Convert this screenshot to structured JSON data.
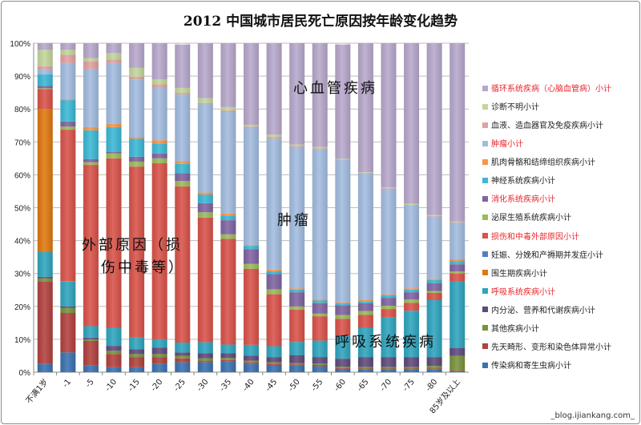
{
  "chart_data": {
    "type": "bar",
    "stacked": "percent",
    "title": "2012 中国城市居民死亡原因按年龄变化趋势",
    "xlabel": "",
    "ylabel": "",
    "ylim": [
      0,
      100
    ],
    "yticks": [
      "0%",
      "10%",
      "20%",
      "30%",
      "40%",
      "50%",
      "60%",
      "70%",
      "80%",
      "90%",
      "100%"
    ],
    "grid": true,
    "legend_position": "right",
    "categories": [
      "不满1岁",
      "-1",
      "-5",
      "-10",
      "-15",
      "-20",
      "-25",
      "-30",
      "-35",
      "-40",
      "-45",
      "-50",
      "-55",
      "-60",
      "-65",
      "-70",
      "-75",
      "-80",
      "85岁及以上"
    ],
    "series": [
      {
        "name": "传染病和寄生虫病小计",
        "color": "#3A72B0",
        "highlight": false,
        "values": [
          2.5,
          6,
          2,
          1.5,
          1.5,
          2.5,
          3,
          3,
          3.2,
          2.5,
          2.2,
          2,
          1.8,
          1,
          0.8,
          0.8,
          0.8,
          0.8,
          0.3
        ]
      },
      {
        "name": "先天畸形、变形和染色体异常小计",
        "color": "#B2413E",
        "highlight": false,
        "values": [
          25,
          12,
          7.5,
          4,
          3,
          2,
          1.2,
          0.4,
          0.5,
          0.5,
          0.4,
          0.4,
          0.4,
          0.3,
          0.3,
          0.3,
          0.3,
          0.3,
          0.2
        ]
      },
      {
        "name": "其他疾病小计",
        "color": "#77933C",
        "highlight": false,
        "values": [
          1,
          1.5,
          0.5,
          1,
          1,
          1,
          0.8,
          0.8,
          0.6,
          0.5,
          0.4,
          0.4,
          0.4,
          0.4,
          0.5,
          0.5,
          0.5,
          0.8,
          4.5
        ]
      },
      {
        "name": "内分泌、营养和代谢疾病小计",
        "color": "#604A7B",
        "highlight": false,
        "values": [
          0.5,
          0.5,
          0.5,
          1.5,
          1.5,
          2,
          1,
          1.6,
          1.5,
          1.5,
          1.6,
          2.4,
          2,
          2.4,
          3,
          3,
          3,
          2.7,
          2.3
        ]
      },
      {
        "name": "呼吸系统疾病小计",
        "color": "#2FA5BE",
        "highlight": true,
        "values": [
          7.5,
          7.5,
          3.5,
          5.5,
          3.5,
          2.5,
          3,
          3.3,
          2.6,
          3.3,
          3.3,
          4,
          5,
          6.9,
          8.9,
          12,
          14.1,
          17.3,
          20.3
        ]
      },
      {
        "name": "围生期疾病小计",
        "color": "#E0780F",
        "highlight": false,
        "values": [
          43.5,
          0.2,
          0,
          0,
          0,
          0,
          0,
          0,
          0,
          0,
          0,
          0,
          0,
          0,
          0,
          0,
          0,
          0,
          0
        ]
      },
      {
        "name": "妊娠、分娩和产褥期并发症小计",
        "color": "#4F81BD",
        "highlight": false,
        "values": [
          0,
          0,
          0,
          0,
          0,
          0,
          0,
          0,
          0,
          0,
          0,
          0,
          0,
          0,
          0,
          0,
          0,
          0,
          0
        ]
      },
      {
        "name": "损伤和中毒外部原因小计",
        "color": "#D9534A",
        "highlight": true,
        "values": [
          6,
          46,
          49,
          51.5,
          52,
          53.5,
          47.5,
          37.9,
          32.1,
          23.1,
          15.8,
          9.8,
          7.4,
          5.2,
          3.9,
          2.6,
          2.4,
          2.2,
          2.4
        ]
      },
      {
        "name": "泌尿生殖系统疾病小计",
        "color": "#9BBB59",
        "highlight": false,
        "values": [
          0.3,
          1,
          0.8,
          1.5,
          1.5,
          1.5,
          1.6,
          1.6,
          1.4,
          1.5,
          1.5,
          1,
          0.8,
          1.2,
          1.2,
          1,
          1,
          0.6,
          0.6
        ]
      },
      {
        "name": "消化系统疾病小计",
        "color": "#8064A2",
        "highlight": true,
        "values": [
          0.7,
          1.5,
          1,
          0.5,
          1.5,
          1.5,
          2.4,
          2.8,
          4.3,
          4.5,
          4.6,
          4.3,
          3.2,
          2.9,
          2.4,
          2.4,
          2.2,
          2.3,
          2.2
        ]
      },
      {
        "name": "神经系统疾病小计",
        "color": "#3CB8D6",
        "highlight": false,
        "values": [
          3.5,
          6.5,
          8.7,
          7.5,
          5.5,
          3,
          2.8,
          2.6,
          1.4,
          1,
          0.9,
          0.8,
          0.8,
          0.6,
          0.6,
          0.8,
          0.8,
          1,
          1
        ]
      },
      {
        "name": "肌肉骨骼和结缔组织疾病小计",
        "color": "#F79646",
        "highlight": false,
        "values": [
          0,
          0.3,
          1,
          1,
          0.5,
          1,
          0.8,
          0.6,
          0.6,
          0.3,
          0.5,
          0.4,
          0.4,
          0.3,
          0.4,
          0.2,
          0.4,
          0.4,
          0.5
        ]
      },
      {
        "name": "肿瘤小计",
        "color": "#A3BCE0",
        "highlight": true,
        "values": [
          1.5,
          11,
          17.5,
          18.5,
          17.5,
          16,
          20.3,
          26.9,
          31,
          35.5,
          39.8,
          43,
          45.5,
          43.3,
          38.4,
          32.2,
          25.2,
          18.9,
          11.1
        ]
      },
      {
        "name": "血液、造血器官及免疫疾病小计",
        "color": "#E0A3A1",
        "highlight": false,
        "values": [
          1,
          2.5,
          2.5,
          1,
          0.8,
          1,
          0.5,
          0.3,
          0.4,
          0.4,
          0.5,
          0.3,
          0.3,
          0.2,
          0.2,
          0.2,
          0.2,
          0.2,
          0.2
        ]
      },
      {
        "name": "诊断不明小计",
        "color": "#C3D69B",
        "highlight": false,
        "values": [
          5,
          1.5,
          1,
          2,
          2.7,
          1.5,
          1.5,
          1.5,
          1,
          0.6,
          0.7,
          0.4,
          0.5,
          0.2,
          0.2,
          0.2,
          0.3,
          0.3,
          0.2
        ]
      },
      {
        "name": "循环系统疾病（心脑血管病）小计",
        "color": "#B8A8CC",
        "highlight": true,
        "values": [
          2,
          2,
          4.5,
          3,
          7.5,
          11,
          13.2,
          16.7,
          19.4,
          24.8,
          27.8,
          30.8,
          31.5,
          34.7,
          39.2,
          43.8,
          48.8,
          52.2,
          54.2
        ]
      }
    ],
    "annotations": {
      "cardio": "心血管疾病",
      "tumor": "肿瘤",
      "external_1": "外部原因（损",
      "external_2": "伤中毒等）",
      "respiratory": "呼吸系统疾病"
    }
  },
  "watermark": "_blog.ijiankang.com_"
}
